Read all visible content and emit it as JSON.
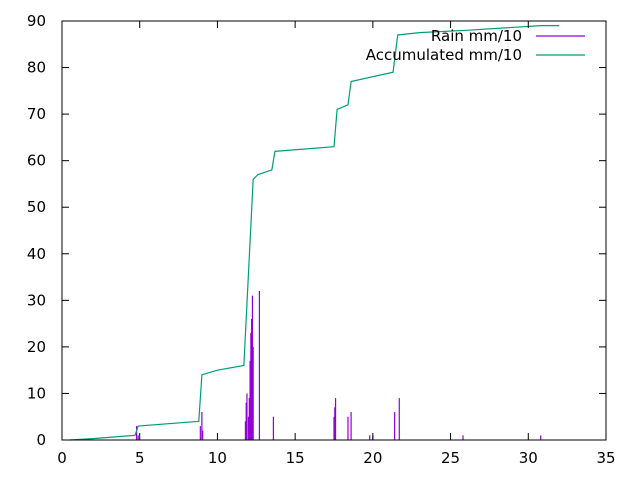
{
  "chart_data": {
    "type": "line",
    "title": "",
    "xlabel": "",
    "ylabel": "",
    "xlim": [
      0,
      35
    ],
    "ylim": [
      0,
      90
    ],
    "x_ticks": [
      0,
      5,
      10,
      15,
      20,
      25,
      30,
      35
    ],
    "y_ticks": [
      0,
      10,
      20,
      30,
      40,
      50,
      60,
      70,
      80,
      90
    ],
    "grid": false,
    "legend_position": "top-right",
    "series": [
      {
        "name": "Rain mm/10",
        "kind": "impulses",
        "color": "#9400d3",
        "points": [
          [
            4.8,
            3
          ],
          [
            4.9,
            1
          ],
          [
            8.9,
            3
          ],
          [
            9.0,
            6
          ],
          [
            9.05,
            2
          ],
          [
            11.8,
            4
          ],
          [
            11.85,
            8
          ],
          [
            11.9,
            10
          ],
          [
            12.0,
            5
          ],
          [
            12.05,
            9
          ],
          [
            12.1,
            17
          ],
          [
            12.15,
            23
          ],
          [
            12.2,
            26
          ],
          [
            12.25,
            31
          ],
          [
            12.3,
            20
          ],
          [
            12.7,
            32
          ],
          [
            13.6,
            5
          ],
          [
            17.5,
            5
          ],
          [
            17.55,
            7
          ],
          [
            17.6,
            9
          ],
          [
            18.4,
            5
          ],
          [
            18.6,
            6
          ],
          [
            19.8,
            1
          ],
          [
            20.0,
            1
          ],
          [
            21.4,
            6
          ],
          [
            21.7,
            9
          ],
          [
            25.8,
            1
          ],
          [
            30.8,
            1
          ]
        ]
      },
      {
        "name": "Accumulated mm/10",
        "kind": "line",
        "color": "#009e73",
        "points": [
          [
            0.5,
            0
          ],
          [
            2.0,
            0.3
          ],
          [
            4.7,
            1
          ],
          [
            4.9,
            3
          ],
          [
            8.8,
            4
          ],
          [
            9.0,
            14
          ],
          [
            10.0,
            15
          ],
          [
            11.7,
            16
          ],
          [
            12.3,
            56
          ],
          [
            12.6,
            57
          ],
          [
            13.5,
            58
          ],
          [
            13.7,
            62
          ],
          [
            17.5,
            63
          ],
          [
            17.7,
            71
          ],
          [
            18.4,
            72
          ],
          [
            18.6,
            77
          ],
          [
            21.3,
            79
          ],
          [
            21.6,
            87
          ],
          [
            23.0,
            87.5
          ],
          [
            26.0,
            88
          ],
          [
            30.8,
            89
          ],
          [
            32.0,
            89
          ]
        ]
      }
    ]
  }
}
